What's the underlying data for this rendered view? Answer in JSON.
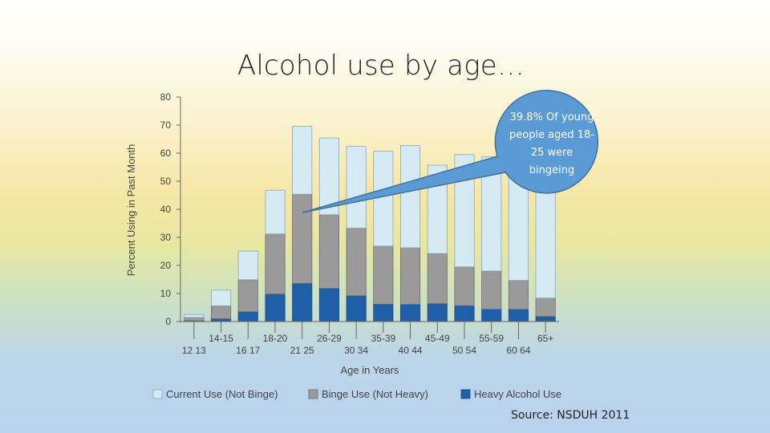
{
  "slide": {
    "title": "Alcohol use by age…",
    "source": "Source: NSDUH 2011",
    "callout": "39.8% Of young people aged 18-25 were bingeing"
  },
  "colors": {
    "current": "#d6eaf4",
    "binge": "#9a9a9a",
    "heavy": "#1f5fa8",
    "callout_fill": "#5b9bd5",
    "callout_stroke": "#41719c"
  },
  "chart_data": {
    "type": "bar",
    "stacked": true,
    "categories": [
      "12 13",
      "14-15",
      "16 17",
      "18-20",
      "21 25",
      "26-29",
      "30 34",
      "35-39",
      "40 44",
      "45-49",
      "50 54",
      "55-59",
      "60 64",
      "65+"
    ],
    "series": [
      {
        "name": "Heavy Alcohol Use",
        "values": [
          0.3,
          1.0,
          3.5,
          9.8,
          13.6,
          11.8,
          9.2,
          6.2,
          6.1,
          6.4,
          5.7,
          4.4,
          4.4,
          1.8
        ]
      },
      {
        "name": "Binge Use (Not Heavy)",
        "values": [
          1.2,
          4.6,
          11.4,
          21.4,
          31.8,
          26.3,
          24.1,
          20.7,
          20.2,
          17.8,
          13.8,
          13.6,
          10.3,
          6.6
        ]
      },
      {
        "name": "Current Use (Not Binge)",
        "values": [
          1.0,
          5.6,
          10.2,
          15.6,
          24.2,
          27.3,
          29.1,
          33.8,
          36.4,
          31.5,
          40.0,
          40.7,
          43.3,
          45.6
        ]
      }
    ],
    "xlabel": "Age in Years",
    "ylabel": "Percent Using in Past Month",
    "ylim": [
      0,
      80
    ],
    "yticks": [
      "0",
      "10",
      "20",
      "30",
      "40",
      "50",
      "60",
      "70",
      "80"
    ],
    "legend_position": "bottom"
  }
}
